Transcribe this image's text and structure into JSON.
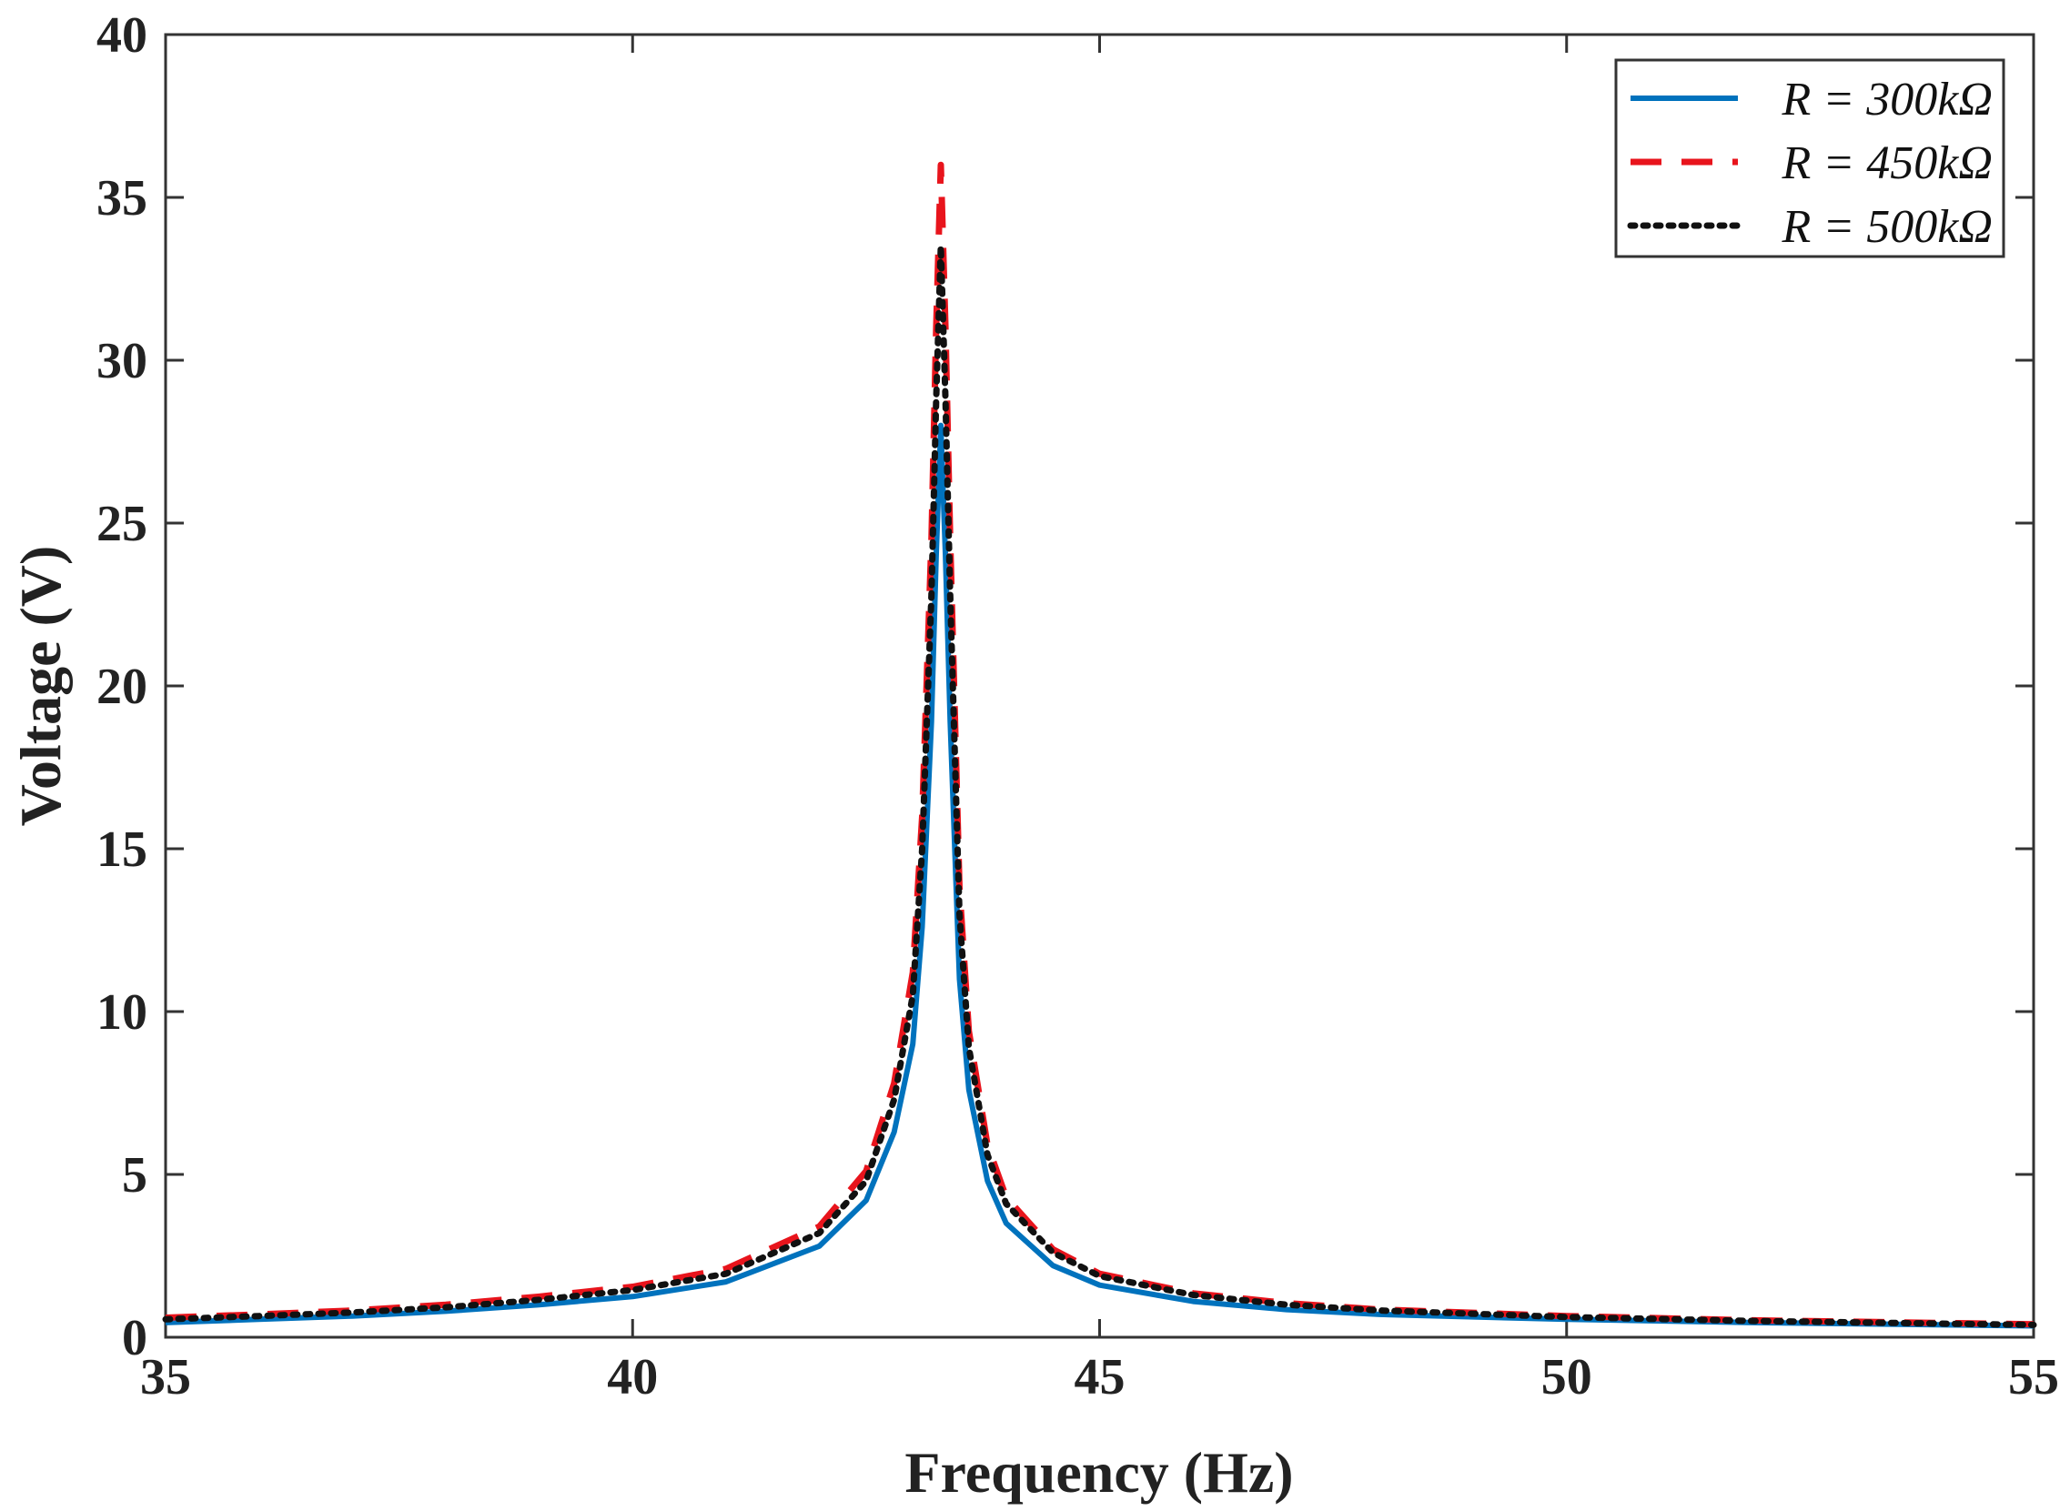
{
  "chart_data": {
    "type": "line",
    "title": "",
    "xlabel": "Frequency (Hz)",
    "ylabel": "Voltage (V)",
    "xlim": [
      35,
      55
    ],
    "ylim": [
      0,
      40
    ],
    "x_ticks": [
      35,
      40,
      45,
      50,
      55
    ],
    "y_ticks": [
      0,
      5,
      10,
      15,
      20,
      25,
      30,
      35,
      40
    ],
    "grid": false,
    "legend_position": "top-right",
    "x": [
      35,
      36,
      37,
      38,
      39,
      40,
      41,
      42,
      42.5,
      42.8,
      43.0,
      43.1,
      43.2,
      43.25,
      43.3,
      43.35,
      43.4,
      43.5,
      43.6,
      43.8,
      44.0,
      44.5,
      45,
      46,
      47,
      48,
      50,
      52,
      55
    ],
    "series": [
      {
        "name": "R = 300kΩ",
        "color": "#0072BD",
        "style": "solid",
        "values": [
          0.45,
          0.55,
          0.65,
          0.8,
          1.0,
          1.25,
          1.7,
          2.8,
          4.2,
          6.3,
          9.0,
          12.6,
          18.9,
          24.0,
          28.0,
          24.0,
          18.9,
          11.0,
          7.6,
          4.8,
          3.5,
          2.2,
          1.6,
          1.1,
          0.85,
          0.7,
          0.55,
          0.45,
          0.35
        ]
      },
      {
        "name": "R = 450kΩ",
        "color": "#E8141C",
        "style": "dashed",
        "values": [
          0.6,
          0.7,
          0.82,
          1.0,
          1.25,
          1.55,
          2.1,
          3.4,
          5.1,
          7.8,
          11.2,
          16.0,
          24.5,
          31.0,
          36.0,
          31.0,
          24.5,
          13.8,
          9.4,
          5.9,
          4.3,
          2.7,
          1.95,
          1.35,
          1.05,
          0.85,
          0.65,
          0.52,
          0.4
        ]
      },
      {
        "name": "R = 500kΩ",
        "color": "#111111",
        "style": "dotted",
        "values": [
          0.55,
          0.65,
          0.76,
          0.92,
          1.15,
          1.45,
          1.95,
          3.2,
          4.8,
          7.3,
          10.5,
          15.0,
          22.8,
          28.8,
          33.5,
          28.8,
          22.8,
          13.0,
          8.9,
          5.6,
          4.1,
          2.6,
          1.88,
          1.3,
          1.0,
          0.82,
          0.62,
          0.5,
          0.38
        ]
      }
    ]
  }
}
